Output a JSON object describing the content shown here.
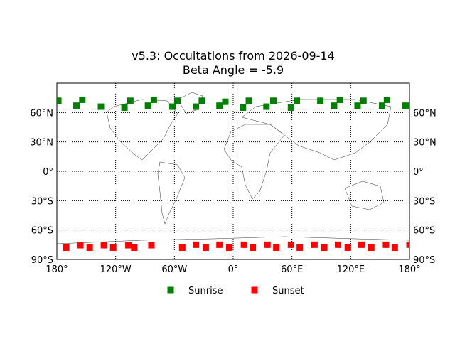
{
  "chart_data": {
    "type": "scatter",
    "title": "v5.3: Occultations from 2026-09-14",
    "subtitle": "Beta Angle = -5.9",
    "xlim": [
      -180,
      180
    ],
    "ylim": [
      -90,
      90
    ],
    "xticks": [
      {
        "value": -180,
        "label": "180°"
      },
      {
        "value": -120,
        "label": "120°W"
      },
      {
        "value": -60,
        "label": "60°W"
      },
      {
        "value": 0,
        "label": "0°"
      },
      {
        "value": 60,
        "label": "60°E"
      },
      {
        "value": 120,
        "label": "120°E"
      },
      {
        "value": 180,
        "label": "180°"
      }
    ],
    "yticks": [
      {
        "value": -90,
        "label": "90°S"
      },
      {
        "value": -60,
        "label": "60°S"
      },
      {
        "value": -30,
        "label": "30°S"
      },
      {
        "value": 0,
        "label": "0°"
      },
      {
        "value": 30,
        "label": "30°N"
      },
      {
        "value": 60,
        "label": "60°N"
      }
    ],
    "grid": true,
    "legend": "bottom",
    "series": [
      {
        "name": "Sunrise",
        "color": "#008000",
        "x": [
          -178.5,
          -160,
          -154,
          -135,
          -111,
          -105,
          -87,
          -81,
          -62,
          -57,
          -38,
          -32,
          -14,
          -8,
          10,
          16,
          34,
          41,
          59,
          65,
          89,
          103,
          109,
          127,
          133,
          152,
          157,
          176
        ],
        "values": [
          72,
          67,
          73,
          66,
          65,
          72,
          67,
          73,
          66,
          72,
          66,
          72,
          67,
          71,
          65,
          72,
          66,
          72,
          65,
          72,
          72,
          67,
          73,
          67,
          72,
          67,
          73,
          67
        ]
      },
      {
        "name": "Sunset",
        "color": "#ff0000",
        "x": [
          -170.5,
          -156,
          -146.5,
          -132,
          -122.5,
          -107,
          -101,
          -83.5,
          -52,
          -38,
          -28,
          -14,
          -4,
          11,
          20,
          35,
          44,
          59,
          68,
          83,
          93,
          107,
          117,
          131,
          141,
          156,
          165,
          180
        ],
        "values": [
          -78,
          -75.5,
          -78,
          -75.5,
          -78,
          -75.5,
          -78,
          -75.5,
          -78,
          -75,
          -78,
          -75,
          -78,
          -75,
          -78,
          -75,
          -78,
          -75,
          -78,
          -75,
          -78,
          -75,
          -78,
          -75,
          -78,
          -75,
          -78,
          -75
        ]
      }
    ]
  }
}
